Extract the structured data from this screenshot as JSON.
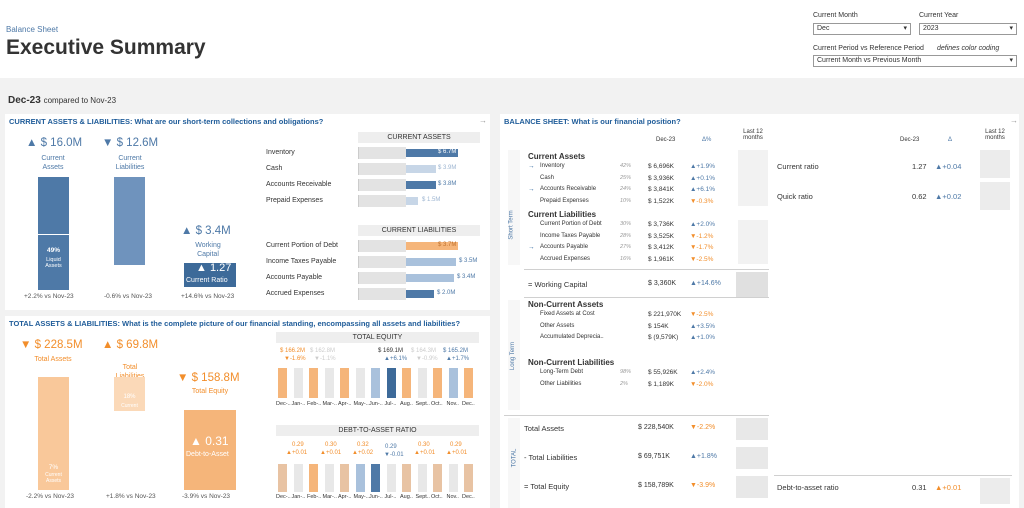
{
  "header": {
    "breadcrumb": "Balance Sheet",
    "title": "Executive Summary"
  },
  "filters": {
    "month_label": "Current Month",
    "month_value": "Dec",
    "year_label": "Current Year",
    "year_value": "2023",
    "period_label": "Current Period vs Reference Period",
    "period_note": "defines color coding",
    "period_value": "Current Month vs Previous Month"
  },
  "date": {
    "current": "Dec-23",
    "compared": "compared to Nov-23"
  },
  "current_section": {
    "title": "CURRENT ASSETS & LIABILITIES: What are our short-term collections and obligations?",
    "kpi_assets": {
      "value": "▲ $ 16.0M",
      "label": "Current Assets",
      "pct_label": "49%",
      "pct_sub": "Liquid Assets",
      "foot": "+2.2% vs Nov-23"
    },
    "kpi_liab": {
      "value": "▼ $ 12.6M",
      "label": "Current Liabilities",
      "foot": "-0.6% vs Nov-23"
    },
    "kpi_wc": {
      "value": "▲ $ 3.4M",
      "label": "Working Capital",
      "ratio": "▲ 1.27",
      "ratio_label": "Current Ratio",
      "foot": "+14.6% vs Nov-23"
    },
    "ca_header": "CURRENT ASSETS",
    "ca_items": [
      {
        "label": "Inventory",
        "value": "$ 6.7M"
      },
      {
        "label": "Cash",
        "value": "$ 3.9M"
      },
      {
        "label": "Accounts Receivable",
        "value": "$ 3.8M"
      },
      {
        "label": "Prepaid Expenses",
        "value": "$ 1.5M"
      }
    ],
    "cl_header": "CURRENT LIABILITIES",
    "cl_items": [
      {
        "label": "Current Portion of Debt",
        "value": "$ 3.7M"
      },
      {
        "label": "Income Taxes Payable",
        "value": "$ 3.5M"
      },
      {
        "label": "Accounts Payable",
        "value": "$ 3.4M"
      },
      {
        "label": "Accrued Expenses",
        "value": "$ 2.0M"
      }
    ]
  },
  "total_section": {
    "title": "TOTAL ASSETS & LIABILITIES: What is the complete picture of our financial standing, encompassing all assets and liabilities?",
    "kpi_assets": {
      "value": "▼ $ 228.5M",
      "label": "Total Assets",
      "pct_label": "7%",
      "pct_sub": "Current Assets",
      "foot": "-2.2% vs Nov-23"
    },
    "kpi_liab": {
      "value": "▲ $ 69.8M",
      "label": "Total Liabilities",
      "pct_label": "18%",
      "pct_sub": "Current",
      "foot": "+1.8% vs Nov-23"
    },
    "kpi_eq": {
      "value": "▼ $ 158.8M",
      "label": "Total Equity",
      "ratio": "▲ 0.31",
      "ratio_label": "Debt-to-Asset",
      "foot": "-3.9% vs Nov-23"
    },
    "equity_chart": {
      "title": "TOTAL EQUITY",
      "labels": [
        "$ 166.2M",
        "$ 162.8M",
        "$ 169.1M",
        "$ 164.3M",
        "$ 165.2M"
      ],
      "deltas": [
        "▼-1.6%",
        "▼-1.1%",
        "▲+6.1%",
        "▼-0.9%",
        "▲+1.7%"
      ]
    },
    "dta_chart": {
      "title": "DEBT-TO-ASSET RATIO",
      "labels": [
        "0.29",
        "0.30",
        "0.32",
        "0.29",
        "0.30",
        "0.29"
      ],
      "deltas": [
        "▲+0.01",
        "▲+0.01",
        "▲+0.02",
        "▼-0.01",
        "▲+0.01",
        "▲+0.01"
      ]
    },
    "months": [
      "Dec-..",
      "Jan-..",
      "Feb-..",
      "Mar-..",
      "Apr-..",
      "May-..",
      "Jun-..",
      "Jul-..",
      "Aug..",
      "Sept..",
      "Oct..",
      "Nov..",
      "Dec.."
    ]
  },
  "balance_sheet": {
    "title": "BALANCE SHEET: What is our financial position?",
    "col_date": "Dec-23",
    "col_delta": "Δ%",
    "col_last": "Last 12 months",
    "col_date2": "Dec-23",
    "col_delta2": "Δ",
    "col_last2": "Last 12 months",
    "short_term": "Short Term",
    "long_term": "Long Term",
    "total": "TOTAL",
    "ca_title": "Current Assets",
    "ca_rows": [
      {
        "name": "Inventory",
        "pct": "42%",
        "value": "$ 6,696K",
        "delta": "▲+1.9%"
      },
      {
        "name": "Cash",
        "pct": "25%",
        "value": "$ 3,936K",
        "delta": "▲+0.1%"
      },
      {
        "name": "Accounts Receivable",
        "pct": "24%",
        "value": "$ 3,841K",
        "delta": "▲+6.1%"
      },
      {
        "name": "Prepaid Expenses",
        "pct": "10%",
        "value": "$ 1,522K",
        "delta": "▼-0.3%"
      }
    ],
    "cl_title": "Current Liabilities",
    "cl_rows": [
      {
        "name": "Current Portion of Debt",
        "pct": "30%",
        "value": "$ 3,736K",
        "delta": "▲+2.0%"
      },
      {
        "name": "Income Taxes Payable",
        "pct": "28%",
        "value": "$ 3,525K",
        "delta": "▼-1.2%"
      },
      {
        "name": "Accounts Payable",
        "pct": "27%",
        "value": "$ 3,412K",
        "delta": "▼-1.7%"
      },
      {
        "name": "Accrued Expenses",
        "pct": "16%",
        "value": "$ 1,961K",
        "delta": "▼-2.5%"
      }
    ],
    "wc": {
      "name": "= Working Capital",
      "value": "$ 3,360K",
      "delta": "▲+14.6%"
    },
    "nca_title": "Non-Current Assets",
    "nca_rows": [
      {
        "name": "Fixed Assets at Cost",
        "value": "$ 221,970K",
        "delta": "▼-2.5%"
      },
      {
        "name": "Other Assets",
        "value": "$ 154K",
        "delta": "▲+3.5%"
      },
      {
        "name": "Accumulated Deprecia..",
        "value": "$ (9,579K)",
        "delta": "▲+1.0%"
      }
    ],
    "ncl_title": "Non-Current Liabilities",
    "ncl_rows": [
      {
        "name": "Long-Term Debt",
        "pct": "98%",
        "value": "$ 55,926K",
        "delta": "▲+2.4%"
      },
      {
        "name": "Other Liabilities",
        "pct": "2%",
        "value": "$ 1,189K",
        "delta": "▼-2.0%"
      }
    ],
    "totals": [
      {
        "name": "Total Assets",
        "value": "$ 228,540K",
        "delta": "▼-2.2%"
      },
      {
        "name": "- Total Liabilities",
        "value": "$ 69,751K",
        "delta": "▲+1.8%"
      },
      {
        "name": "= Total Equity",
        "value": "$ 158,789K",
        "delta": "▼-3.9%"
      }
    ],
    "ratios": [
      {
        "name": "Current ratio",
        "value": "1.27",
        "delta": "▲+0.04"
      },
      {
        "name": "Quick ratio",
        "value": "0.62",
        "delta": "▲+0.02"
      },
      {
        "name": "Debt-to-asset ratio",
        "value": "0.31",
        "delta": "▲+0.01"
      }
    ]
  }
}
